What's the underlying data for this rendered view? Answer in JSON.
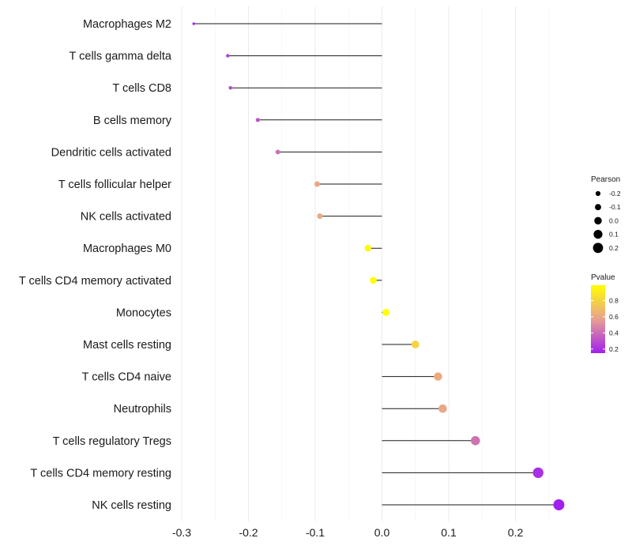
{
  "chart_data": {
    "type": "lollipop",
    "title": "",
    "xlabel": "",
    "ylabel": "",
    "xlim": [
      -0.3,
      0.27
    ],
    "x_ticks": [
      -0.3,
      -0.2,
      -0.1,
      0.0,
      0.1,
      0.2
    ],
    "x_tick_labels": [
      "-0.3",
      "-0.2",
      "-0.1",
      "0.0",
      "0.1",
      "0.2"
    ],
    "categories": [
      "Macrophages M2",
      "T cells gamma delta",
      "T cells CD8",
      "B cells memory",
      "Dendritic cells activated",
      "T cells follicular helper",
      "NK cells activated",
      "Macrophages M0",
      "T cells CD4 memory activated",
      "Monocytes",
      "Mast cells resting",
      "T cells CD4 naive",
      "Neutrophils",
      "T cells regulatory  Tregs",
      "T cells CD4 memory resting",
      "NK cells resting"
    ],
    "pearson": [
      -0.282,
      -0.231,
      -0.227,
      -0.186,
      -0.156,
      -0.097,
      -0.093,
      -0.021,
      -0.013,
      0.006,
      0.05,
      0.084,
      0.091,
      0.14,
      0.234,
      0.265
    ],
    "pvalue": [
      0.15,
      0.25,
      0.27,
      0.32,
      0.4,
      0.6,
      0.62,
      0.97,
      0.98,
      0.99,
      0.8,
      0.62,
      0.6,
      0.42,
      0.2,
      0.15
    ],
    "legend_size": {
      "title": "Pearson",
      "labels": [
        "-0.2",
        "-0.1",
        "0.0",
        "0.1",
        "0.2"
      ],
      "values": [
        -0.2,
        -0.1,
        0.0,
        0.1,
        0.2
      ]
    },
    "legend_color": {
      "title": "Pvalue",
      "labels": [
        "0.8",
        "0.6",
        "0.4",
        "0.2"
      ],
      "values": [
        0.8,
        0.6,
        0.4,
        0.2
      ],
      "range": [
        0.15,
        0.99
      ],
      "low_color": "#a020f0",
      "mid_color": "#e8a090",
      "high_color": "#ffff00"
    }
  }
}
